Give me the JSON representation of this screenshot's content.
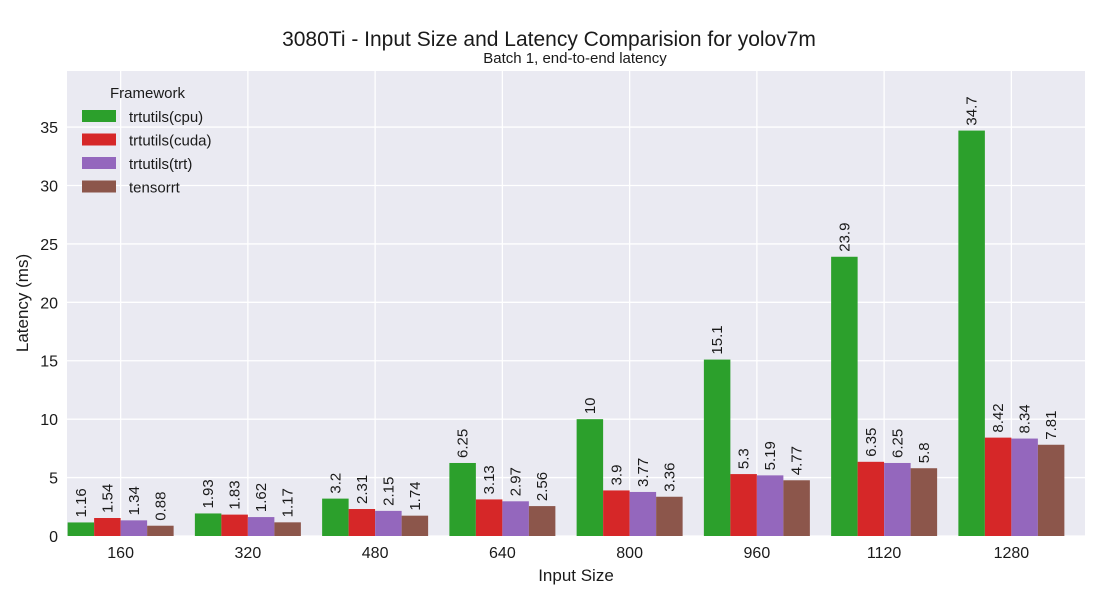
{
  "chart_data": {
    "type": "bar",
    "title": "3080Ti - Input Size and Latency Comparision for yolov7m",
    "subtitle": "Batch 1, end-to-end latency",
    "xlabel": "Input Size",
    "ylabel": "Latency (ms)",
    "categories": [
      "160",
      "320",
      "480",
      "640",
      "800",
      "960",
      "1120",
      "1280"
    ],
    "ylim": [
      0,
      39.8
    ],
    "yticks": [
      0,
      5,
      10,
      15,
      20,
      25,
      30,
      35
    ],
    "grid": true,
    "legend_title": "Framework",
    "legend_position": "top-left",
    "series": [
      {
        "name": "trtutils(cpu)",
        "color": "#2ca02c",
        "values": [
          1.16,
          1.93,
          3.2,
          6.25,
          10,
          15.1,
          23.9,
          34.7
        ],
        "labels": [
          "1.16",
          "1.93",
          "3.2",
          "6.25",
          "10",
          "15.1",
          "23.9",
          "34.7"
        ]
      },
      {
        "name": "trtutils(cuda)",
        "color": "#d62728",
        "values": [
          1.54,
          1.83,
          2.31,
          3.13,
          3.9,
          5.3,
          6.35,
          8.42
        ],
        "labels": [
          "1.54",
          "1.83",
          "2.31",
          "3.13",
          "3.9",
          "5.3",
          "6.35",
          "8.42"
        ]
      },
      {
        "name": "trtutils(trt)",
        "color": "#9467bd",
        "values": [
          1.34,
          1.62,
          2.15,
          2.97,
          3.77,
          5.19,
          6.25,
          8.34
        ],
        "labels": [
          "1.34",
          "1.62",
          "2.15",
          "2.97",
          "3.77",
          "5.19",
          "6.25",
          "8.34"
        ]
      },
      {
        "name": "tensorrt",
        "color": "#8c564b",
        "values": [
          0.88,
          1.17,
          1.74,
          2.56,
          3.36,
          4.77,
          5.8,
          7.81
        ],
        "labels": [
          "0.88",
          "1.17",
          "1.74",
          "2.56",
          "3.36",
          "4.77",
          "5.8",
          "7.81"
        ]
      }
    ]
  }
}
